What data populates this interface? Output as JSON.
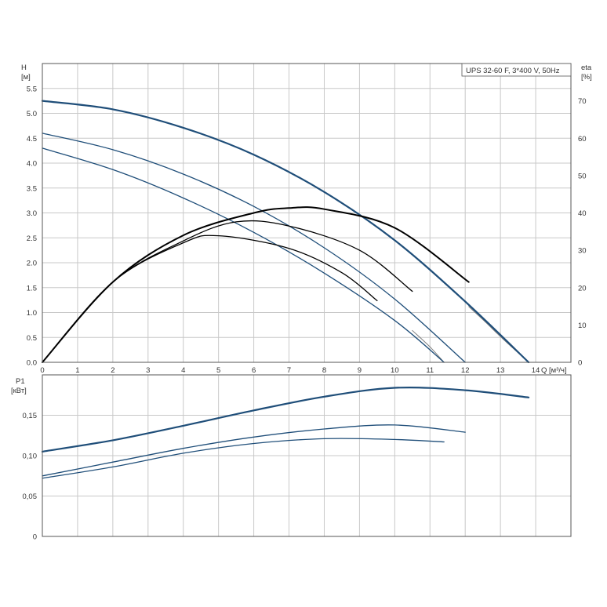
{
  "chart_data": {
    "type": "line",
    "legend": "UPS 32-60 F, 3*400 V, 50Hz",
    "legend_position": "top-right",
    "grid": true,
    "colors": {
      "blue": "#1f4e79",
      "black": "#000000",
      "grid": "#c8c8c8",
      "frame": "#555555"
    },
    "top_panel": {
      "ylabel": "H",
      "yunit": "[м]",
      "y2label": "eta",
      "y2unit": "[%]",
      "xlabel": "Q [м³/ч]",
      "xlim": [
        0,
        15
      ],
      "ylim": [
        0,
        6
      ],
      "y2lim": [
        0,
        80
      ],
      "x_ticks": [
        "0",
        "1",
        "2",
        "3",
        "4",
        "5",
        "6",
        "7",
        "8",
        "9",
        "10",
        "11",
        "12",
        "13",
        "14"
      ],
      "y_ticks": [
        "0.0",
        "0.5",
        "1.0",
        "1.5",
        "2.0",
        "2.5",
        "3.0",
        "3.5",
        "4.0",
        "4.5",
        "5.0",
        "5.5"
      ],
      "y2_ticks": [
        "0",
        "10",
        "20",
        "30",
        "40",
        "50",
        "60",
        "70"
      ],
      "head_series": [
        {
          "speed": 3,
          "x": [
            0,
            2,
            4,
            6,
            8,
            10,
            12,
            13.8
          ],
          "y": [
            5.25,
            5.08,
            4.71,
            4.17,
            3.42,
            2.45,
            1.22,
            0
          ]
        },
        {
          "speed": 2,
          "x": [
            0,
            2,
            4,
            6,
            8,
            10,
            12
          ],
          "y": [
            4.6,
            4.27,
            3.78,
            3.13,
            2.3,
            1.27,
            0
          ]
        },
        {
          "speed": 1,
          "x": [
            0,
            2,
            4,
            6,
            8,
            10,
            11.4
          ],
          "y": [
            4.3,
            3.87,
            3.3,
            2.61,
            1.79,
            0.84,
            0
          ]
        }
      ],
      "eta_series": [
        {
          "speed": 3,
          "x": [
            0,
            2,
            4,
            6,
            7,
            8,
            10,
            12.1
          ],
          "y": [
            0,
            21.5,
            34,
            40,
            41.3,
            41,
            36,
            21.5
          ]
        },
        {
          "speed": 2,
          "x": [
            0,
            2,
            4,
            5.5,
            7,
            9,
            10.5
          ],
          "y": [
            0,
            21.5,
            32.5,
            37.6,
            36.5,
            30,
            19
          ]
        },
        {
          "speed": 1,
          "x": [
            0,
            2,
            4,
            5,
            7,
            8.5,
            9.5
          ],
          "y": [
            0,
            21.5,
            32,
            33.9,
            30.5,
            24,
            16.5
          ]
        }
      ],
      "thin_tails": [
        {
          "x": [
            10.5,
            11,
            11.4
          ],
          "y": [
            0.64,
            0.31,
            0
          ]
        },
        {
          "x": [
            12.1,
            12.6,
            13.1,
            13.8
          ],
          "y": [
            1.12,
            0.79,
            0.45,
            0
          ]
        }
      ]
    },
    "bottom_panel": {
      "ylabel": "P1",
      "yunit": "[кВт]",
      "xlim": [
        0,
        15
      ],
      "ylim": [
        0,
        0.2
      ],
      "y_ticks": [
        "0",
        "0,05",
        "0,10",
        "0,15"
      ],
      "power_series": [
        {
          "speed": 3,
          "x": [
            0,
            2,
            4,
            6,
            8,
            10,
            12,
            13.8
          ],
          "y": [
            0.105,
            0.119,
            0.137,
            0.156,
            0.173,
            0.184,
            0.181,
            0.172
          ]
        },
        {
          "speed": 2,
          "x": [
            0,
            2,
            4,
            6,
            8,
            10,
            12
          ],
          "y": [
            0.075,
            0.092,
            0.109,
            0.123,
            0.133,
            0.138,
            0.129
          ]
        },
        {
          "speed": 1,
          "x": [
            0,
            2,
            4,
            6,
            8,
            10,
            11.4
          ],
          "y": [
            0.072,
            0.086,
            0.103,
            0.115,
            0.121,
            0.12,
            0.117
          ]
        }
      ]
    }
  }
}
